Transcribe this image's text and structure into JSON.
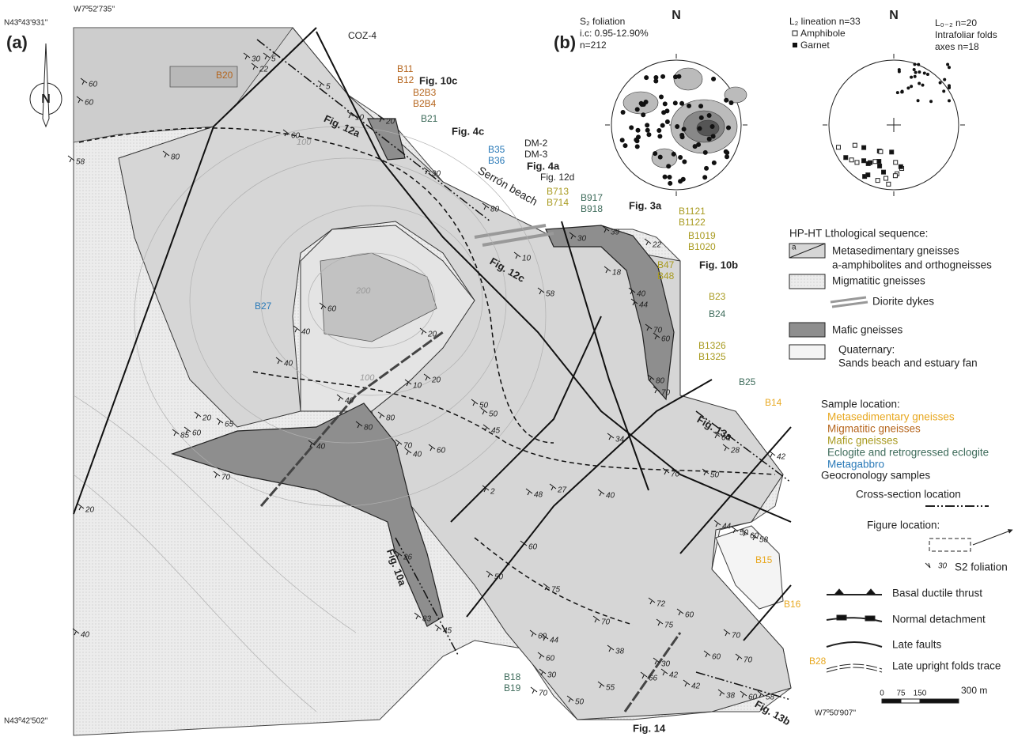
{
  "panel_labels": [
    "(a)",
    "(b)"
  ],
  "coordinates": {
    "top_lat": "N43º43'931''",
    "top_lon": "W7º52'735''",
    "bottom_lat": "N43º42'502''",
    "bottom_lon": "W7º50'907''"
  },
  "north": "N",
  "contours": [
    "100",
    "200",
    "100"
  ],
  "place": "Serrón beach",
  "samples": [
    {
      "labels": [
        "B20"
      ],
      "color": "#b5651d"
    },
    {
      "labels": [
        "B11",
        "B12"
      ],
      "color": "#b5651d"
    },
    {
      "labels": [
        "B2B3",
        "B2B4"
      ],
      "color": "#b5651d"
    },
    {
      "labels": [
        "B21"
      ],
      "color": "#3d6b5a"
    },
    {
      "labels": [
        "B35",
        "B36"
      ],
      "color": "#2a7ab8"
    },
    {
      "labels": [
        "B713",
        "B714"
      ],
      "color": "#a89a1f"
    },
    {
      "labels": [
        "B917",
        "B918"
      ],
      "color": "#3d6b5a"
    },
    {
      "labels": [
        "B1121",
        "B1122"
      ],
      "color": "#a89a1f"
    },
    {
      "labels": [
        "B1019",
        "B1020"
      ],
      "color": "#a89a1f"
    },
    {
      "labels": [
        "B47",
        "B48"
      ],
      "color": "#a89a1f"
    },
    {
      "labels": [
        "B23"
      ],
      "color": "#a89a1f"
    },
    {
      "labels": [
        "B24"
      ],
      "color": "#3d6b5a"
    },
    {
      "labels": [
        "B1326",
        "B1325"
      ],
      "color": "#a89a1f"
    },
    {
      "labels": [
        "B25"
      ],
      "color": "#3d6b5a"
    },
    {
      "labels": [
        "B14"
      ],
      "color": "#e8a820"
    },
    {
      "labels": [
        "B27"
      ],
      "color": "#2a7ab8"
    },
    {
      "labels": [
        "B15"
      ],
      "color": "#e8a820"
    },
    {
      "labels": [
        "B16"
      ],
      "color": "#e8a820"
    },
    {
      "labels": [
        "B28"
      ],
      "color": "#e8a820"
    },
    {
      "labels": [
        "B18",
        "B19"
      ],
      "color": "#3d6b5a"
    },
    {
      "labels": [
        "COZ-4"
      ],
      "color": "#222222"
    },
    {
      "labels": [
        "DM-2",
        "DM-3"
      ],
      "color": "#222222"
    }
  ],
  "figures": [
    "Fig. 10c",
    "Fig. 4c",
    "Fig. 4a",
    "Fig. 12d",
    "Fig. 3a",
    "Fig. 10b",
    "Fig. 14",
    "Fig. 12a",
    "Fig. 12c",
    "Fig. 13a",
    "Fig. 13b",
    "Fig. 10a"
  ],
  "dips": [
    "30",
    "5",
    "22",
    "60",
    "60",
    "5",
    "10",
    "20",
    "60",
    "80",
    "58",
    "30",
    "80",
    "30",
    "39",
    "22",
    "10",
    "18",
    "58",
    "40",
    "44",
    "70",
    "60",
    "80",
    "70",
    "60",
    "40",
    "40",
    "20",
    "10",
    "20",
    "80",
    "80",
    "70",
    "40",
    "60",
    "50",
    "50",
    "45",
    "2",
    "20",
    "40",
    "65",
    "85",
    "60",
    "40",
    "70",
    "20",
    "34",
    "48",
    "27",
    "40",
    "70",
    "50",
    "60",
    "28",
    "42",
    "44",
    "50",
    "60",
    "58",
    "60",
    "50",
    "75",
    "72",
    "75",
    "60",
    "70",
    "70",
    "60",
    "60",
    "70",
    "44",
    "60",
    "30",
    "38",
    "30",
    "42",
    "66",
    "42",
    "55",
    "50",
    "70",
    "38",
    "60",
    "58",
    "40",
    "83",
    "26",
    "45"
  ],
  "legend": {
    "sequence_title": "HP-HT Lthological sequence:",
    "a_mark": "a",
    "metased": [
      "Metasedimentary gneisses",
      "a-amphibolites and orthogneisses"
    ],
    "migmatitic": "Migmatitic gneisses",
    "diorite": "Diorite dykes",
    "mafic": "Mafic gneisses",
    "quaternary": [
      "Quaternary:",
      "Sands beach and estuary fan"
    ],
    "sample_title": "Sample location:",
    "sample_types": [
      {
        "label": "Metasedimentary gneisses",
        "color": "#e8a820"
      },
      {
        "label": "Migmatitic gneisses",
        "color": "#b5651d"
      },
      {
        "label": "Mafic gneisses",
        "color": "#a89a1f"
      },
      {
        "label": "Eclogite and retrogressed eclogite",
        "color": "#3d6b5a"
      },
      {
        "label": "Metagabbro",
        "color": "#2a7ab8"
      }
    ],
    "geochron": "Geocronology samples",
    "cross_section": "Cross-section location",
    "figure_location": "Figure location:",
    "dip_example": "30",
    "foliation": "S2  foliation",
    "thrust": "Basal ductile thrust",
    "detachment": "Normal detachment",
    "faults": "Late faults",
    "folds": "Late upright folds trace",
    "scale": [
      "0",
      "75",
      "150",
      "300 m"
    ]
  },
  "stereonets": {
    "left": {
      "north": "N",
      "lines": [
        "S₂ foliation",
        "i.c: 0.95-12.90%",
        "n=212"
      ]
    },
    "right": {
      "north": "N",
      "lineation": "L₂ lineation n=33",
      "amphibole": "Amphibole",
      "garnet": "Garnet",
      "fold_lines": [
        "L₀₋₂ n=20",
        "Intrafoliar folds",
        "axes n=18"
      ]
    }
  }
}
